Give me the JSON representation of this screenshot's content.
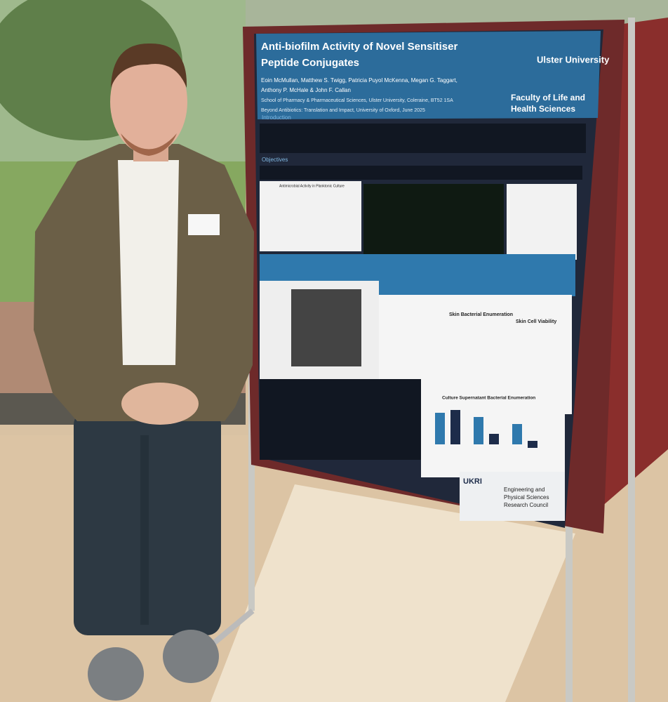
{
  "poster": {
    "title_lines": [
      "Anti-biofilm Activity of Novel Sensitiser",
      "Peptide Conjugates"
    ],
    "author_lines": [
      "Eoin McMullan, Matthew S. Twigg, Patricia Puyol McKenna, Megan G. Taggart,",
      "Anthony P. McHale & John F. Callan"
    ],
    "affiliation": "School of Pharmacy & Pharmaceutical Sciences, Ulster University, Coleraine, BT52 1SA",
    "conference": "Beyond Antibiotics: Translation and Impact, University of Oxford, June 2025",
    "logo": "Ulster University",
    "faculty_lines": [
      "Faculty of Life and",
      "Health Sciences"
    ],
    "sections": [
      "Introduction",
      "Objectives"
    ],
    "figure_titles": [
      "Antimicrobial Activity in Planktonic Culture",
      "Skin Bacterial Enumeration",
      "Skin Cell Viability",
      "Culture Supernatant Bacterial Enumeration"
    ],
    "funder_mark": "UKRI",
    "funder_lines": [
      "Engineering and",
      "Physical Sciences",
      "Research Council"
    ]
  }
}
